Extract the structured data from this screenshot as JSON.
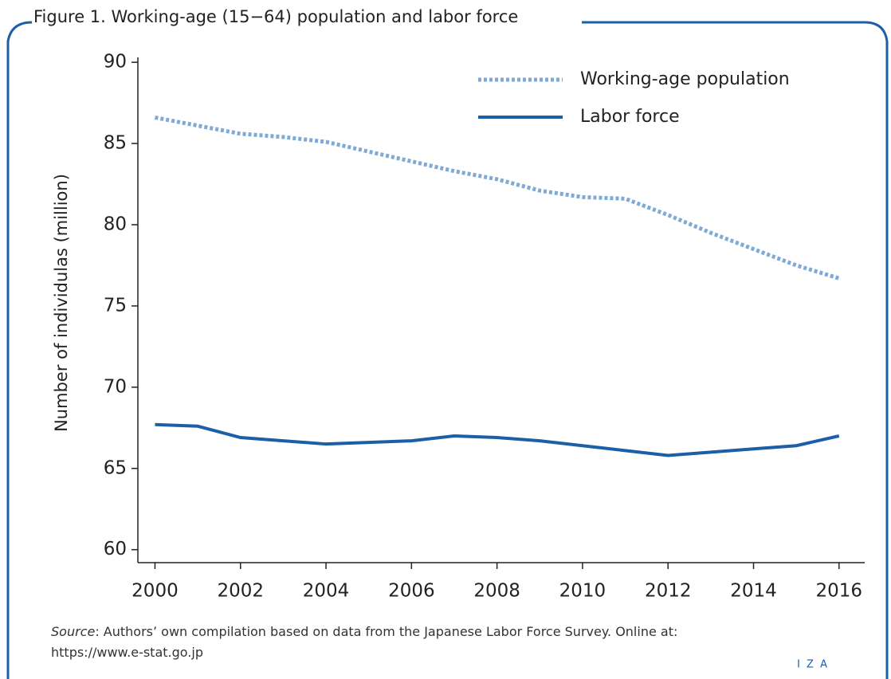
{
  "chart_data": {
    "type": "line",
    "title": "Figure 1. Working-age (15−64) population and labor force",
    "y_label": "Number of individulas (million)",
    "x": [
      2000,
      2001,
      2002,
      2003,
      2004,
      2005,
      2006,
      2007,
      2008,
      2009,
      2010,
      2011,
      2012,
      2013,
      2014,
      2015,
      2016
    ],
    "series": [
      {
        "name": "Working-age population",
        "color": "#7eaad6",
        "dashed": true,
        "values": [
          86.6,
          86.1,
          85.6,
          85.4,
          85.1,
          84.5,
          83.9,
          83.3,
          82.8,
          82.1,
          81.7,
          81.6,
          80.6,
          79.5,
          78.5,
          77.5,
          76.7
        ]
      },
      {
        "name": "Labor force",
        "color": "#1b5fa8",
        "dashed": false,
        "values": [
          67.7,
          67.6,
          66.9,
          66.7,
          66.5,
          66.6,
          66.7,
          67.0,
          66.9,
          66.7,
          66.4,
          66.1,
          65.8,
          66.0,
          66.2,
          66.4,
          67.0
        ]
      }
    ],
    "xlim": [
      1999.6,
      2016.6
    ],
    "xticks": [
      2000,
      2002,
      2004,
      2006,
      2008,
      2010,
      2012,
      2014,
      2016
    ],
    "ylim": [
      59.2,
      90.3
    ],
    "yticks": [
      60,
      65,
      70,
      75,
      80,
      85,
      90
    ],
    "source_label": "Source",
    "source_text": ": Authors’ own compilation based on data from the Japanese Labor Force Survey. Online at: https://www.e-stat.go.jp",
    "logo": "I Z A"
  }
}
